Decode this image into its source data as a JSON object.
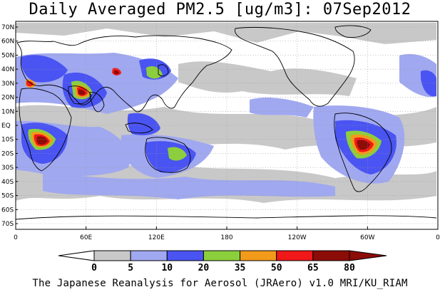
{
  "title": "Daily Averaged PM2.5 [ug/m3]: 07Sep2012",
  "credit": "The Japanese Reanalysis for Aerosol (JRAero) v1.0 MRI/KU_RIAM",
  "lat_labels": [
    "70N",
    "60N",
    "50N",
    "40N",
    "30N",
    "20N",
    "10N",
    "EQ",
    "10S",
    "20S",
    "30S",
    "40S",
    "50S",
    "60S",
    "70S"
  ],
  "lon_labels": [
    "0",
    "60E",
    "120E",
    "180",
    "120W",
    "60W",
    "0"
  ],
  "colorbar": {
    "ticks": [
      "0",
      "5",
      "10",
      "20",
      "35",
      "50",
      "65",
      "80"
    ],
    "colors": [
      "#ffffff",
      "#c8c8c8",
      "#a0a8f0",
      "#4a54f2",
      "#8ccf3c",
      "#f29a1a",
      "#f01818",
      "#8c0c08"
    ]
  },
  "palette": {
    "land": "#000000",
    "grid": "#9a9a9a"
  }
}
